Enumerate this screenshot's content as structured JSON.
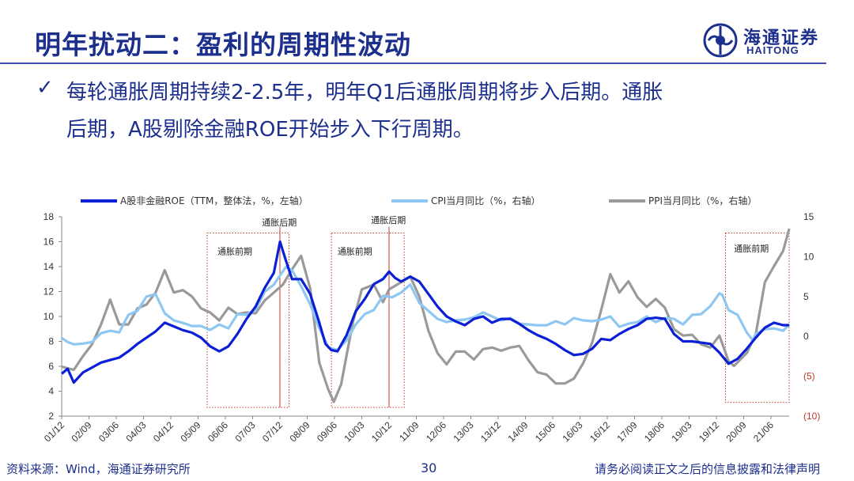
{
  "header": {
    "title": "明年扰动二：盈利的周期性波动",
    "logo_cn": "海通证券",
    "logo_en": "HAITONG"
  },
  "bullet": {
    "line1": "每轮通胀周期持续2-2.5年，明年Q1后通胀周期将步入后期。通胀",
    "line2": "后期，A股剔除金融ROE开始步入下行周期。"
  },
  "footer": {
    "source": "资料来源：Wind，海通证券研究所",
    "page": "30",
    "disclaimer": "请务必阅读正文之后的信息披露和法律声明"
  },
  "colors": {
    "title": "#1d2f8c",
    "roe": "#0b1fd6",
    "cpi": "#8ec7f2",
    "ppi": "#9a9a9a",
    "annotation_box": "#c0392b",
    "negative_tick": "#c0392b"
  },
  "chart_data": {
    "type": "line",
    "legend": [
      "A股非金融ROE（TTM，整体法，%，左轴）",
      "CPI当月同比（%，右轴）",
      "PPI当月同比（%，右轴）"
    ],
    "x_ticks": [
      "01/12",
      "02/09",
      "03/06",
      "04/03",
      "04/12",
      "05/09",
      "06/06",
      "07/03",
      "07/12",
      "08/09",
      "09/06",
      "10/03",
      "10/12",
      "11/09",
      "12/06",
      "13/03",
      "13/12",
      "14/09",
      "15/06",
      "16/03",
      "16/12",
      "17/09",
      "18/06",
      "19/03",
      "19/12",
      "20/09",
      "21/06"
    ],
    "y_left_ticks": [
      "18",
      "16",
      "14",
      "12",
      "10",
      "8",
      "6",
      "4",
      "2"
    ],
    "y_left_lim": [
      2,
      18
    ],
    "y_right_ticks": [
      "15",
      "10",
      "5",
      "0",
      "(5)",
      "(10)"
    ],
    "y_right_lim": [
      -10,
      15
    ],
    "x_range": [
      2001.917,
      2021.917
    ],
    "annotations": [
      {
        "label": "通胀前期",
        "x0": 2005.917,
        "x1": 2008.0
      },
      {
        "label": "通胀后期",
        "x0": 2007.5,
        "x1": 2008.5
      },
      {
        "label": "通胀前期",
        "x0": 2009.333,
        "x1": 2010.333
      },
      {
        "label": "通胀后期",
        "x0": 2010.5,
        "x1": 2011.333
      },
      {
        "label": "通胀前期",
        "x0": 2020.167,
        "x1": 2021.917
      }
    ],
    "annotation_lines": [
      2007.917,
      2010.917
    ],
    "series": [
      {
        "name": "A股非金融ROE（TTM，整体法，%，左轴）",
        "axis": "left",
        "points": [
          [
            2001.92,
            5.4
          ],
          [
            2002.08,
            5.8
          ],
          [
            2002.25,
            4.7
          ],
          [
            2002.5,
            5.5
          ],
          [
            2002.75,
            5.9
          ],
          [
            2003.0,
            6.3
          ],
          [
            2003.25,
            6.5
          ],
          [
            2003.5,
            6.7
          ],
          [
            2003.75,
            7.2
          ],
          [
            2004.0,
            7.8
          ],
          [
            2004.25,
            8.3
          ],
          [
            2004.5,
            8.8
          ],
          [
            2004.75,
            9.5
          ],
          [
            2005.0,
            9.2
          ],
          [
            2005.25,
            8.9
          ],
          [
            2005.5,
            8.7
          ],
          [
            2005.75,
            8.3
          ],
          [
            2006.0,
            7.6
          ],
          [
            2006.25,
            7.2
          ],
          [
            2006.5,
            7.6
          ],
          [
            2006.75,
            8.6
          ],
          [
            2007.0,
            9.8
          ],
          [
            2007.25,
            10.8
          ],
          [
            2007.5,
            12.3
          ],
          [
            2007.75,
            13.5
          ],
          [
            2007.92,
            16.0
          ],
          [
            2008.08,
            14.5
          ],
          [
            2008.25,
            13.0
          ],
          [
            2008.5,
            13.0
          ],
          [
            2008.75,
            11.8
          ],
          [
            2009.0,
            9.5
          ],
          [
            2009.17,
            7.8
          ],
          [
            2009.33,
            7.3
          ],
          [
            2009.5,
            7.2
          ],
          [
            2009.75,
            8.5
          ],
          [
            2010.0,
            10.4
          ],
          [
            2010.25,
            11.4
          ],
          [
            2010.5,
            12.6
          ],
          [
            2010.75,
            13.0
          ],
          [
            2010.92,
            13.6
          ],
          [
            2011.08,
            13.1
          ],
          [
            2011.25,
            12.8
          ],
          [
            2011.5,
            13.2
          ],
          [
            2011.75,
            12.8
          ],
          [
            2012.0,
            11.8
          ],
          [
            2012.25,
            10.8
          ],
          [
            2012.5,
            10.0
          ],
          [
            2012.75,
            9.6
          ],
          [
            2013.0,
            9.3
          ],
          [
            2013.25,
            9.8
          ],
          [
            2013.5,
            10.0
          ],
          [
            2013.75,
            9.5
          ],
          [
            2014.0,
            9.8
          ],
          [
            2014.25,
            9.8
          ],
          [
            2014.5,
            9.4
          ],
          [
            2014.75,
            8.9
          ],
          [
            2015.0,
            8.5
          ],
          [
            2015.25,
            8.2
          ],
          [
            2015.5,
            7.8
          ],
          [
            2015.75,
            7.3
          ],
          [
            2016.0,
            6.9
          ],
          [
            2016.25,
            7.0
          ],
          [
            2016.5,
            7.4
          ],
          [
            2016.75,
            8.2
          ],
          [
            2017.0,
            8.1
          ],
          [
            2017.25,
            8.6
          ],
          [
            2017.5,
            9.0
          ],
          [
            2017.75,
            9.3
          ],
          [
            2018.0,
            9.8
          ],
          [
            2018.25,
            9.9
          ],
          [
            2018.5,
            9.8
          ],
          [
            2018.75,
            8.6
          ],
          [
            2019.0,
            8.0
          ],
          [
            2019.25,
            8.0
          ],
          [
            2019.5,
            7.9
          ],
          [
            2019.75,
            7.8
          ],
          [
            2020.0,
            7.1
          ],
          [
            2020.25,
            6.2
          ],
          [
            2020.5,
            6.6
          ],
          [
            2020.75,
            7.4
          ],
          [
            2021.0,
            8.3
          ],
          [
            2021.25,
            9.1
          ],
          [
            2021.5,
            9.5
          ],
          [
            2021.75,
            9.3
          ],
          [
            2021.92,
            9.3
          ]
        ]
      },
      {
        "name": "CPI当月同比（%，右轴）",
        "axis": "right",
        "points": [
          [
            2001.92,
            -0.2
          ],
          [
            2002.08,
            -0.7
          ],
          [
            2002.25,
            -1.0
          ],
          [
            2002.5,
            -0.9
          ],
          [
            2002.75,
            -0.7
          ],
          [
            2003.0,
            0.4
          ],
          [
            2003.25,
            0.7
          ],
          [
            2003.5,
            0.5
          ],
          [
            2003.75,
            2.7
          ],
          [
            2004.0,
            3.2
          ],
          [
            2004.25,
            5.0
          ],
          [
            2004.5,
            5.3
          ],
          [
            2004.75,
            2.9
          ],
          [
            2005.0,
            2.0
          ],
          [
            2005.25,
            1.7
          ],
          [
            2005.5,
            1.3
          ],
          [
            2005.75,
            1.3
          ],
          [
            2006.0,
            0.8
          ],
          [
            2006.25,
            1.5
          ],
          [
            2006.5,
            1.0
          ],
          [
            2006.75,
            2.8
          ],
          [
            2007.0,
            2.7
          ],
          [
            2007.25,
            3.4
          ],
          [
            2007.5,
            5.6
          ],
          [
            2007.75,
            6.5
          ],
          [
            2008.08,
            8.7
          ],
          [
            2008.25,
            8.3
          ],
          [
            2008.5,
            6.3
          ],
          [
            2008.75,
            4.0
          ],
          [
            2009.0,
            1.0
          ],
          [
            2009.25,
            -1.4
          ],
          [
            2009.5,
            -1.7
          ],
          [
            2009.75,
            -0.5
          ],
          [
            2010.0,
            1.5
          ],
          [
            2010.25,
            2.8
          ],
          [
            2010.5,
            3.3
          ],
          [
            2010.75,
            5.1
          ],
          [
            2011.0,
            4.9
          ],
          [
            2011.25,
            5.5
          ],
          [
            2011.5,
            6.5
          ],
          [
            2011.75,
            4.2
          ],
          [
            2012.0,
            3.2
          ],
          [
            2012.25,
            2.2
          ],
          [
            2012.5,
            1.8
          ],
          [
            2012.75,
            2.0
          ],
          [
            2013.0,
            2.1
          ],
          [
            2013.25,
            2.4
          ],
          [
            2013.5,
            3.0
          ],
          [
            2013.75,
            2.5
          ],
          [
            2014.0,
            2.0
          ],
          [
            2014.25,
            2.3
          ],
          [
            2014.5,
            1.6
          ],
          [
            2014.75,
            1.5
          ],
          [
            2015.0,
            1.4
          ],
          [
            2015.25,
            1.4
          ],
          [
            2015.5,
            1.9
          ],
          [
            2015.75,
            1.5
          ],
          [
            2016.0,
            2.3
          ],
          [
            2016.25,
            2.0
          ],
          [
            2016.5,
            1.9
          ],
          [
            2016.75,
            2.1
          ],
          [
            2017.0,
            2.5
          ],
          [
            2017.25,
            1.2
          ],
          [
            2017.5,
            1.6
          ],
          [
            2017.75,
            1.8
          ],
          [
            2018.0,
            2.5
          ],
          [
            2018.25,
            1.8
          ],
          [
            2018.5,
            2.3
          ],
          [
            2018.75,
            2.2
          ],
          [
            2019.0,
            1.5
          ],
          [
            2019.25,
            2.7
          ],
          [
            2019.5,
            2.8
          ],
          [
            2019.75,
            3.8
          ],
          [
            2020.0,
            5.4
          ],
          [
            2020.08,
            5.2
          ],
          [
            2020.25,
            3.3
          ],
          [
            2020.5,
            2.7
          ],
          [
            2020.75,
            0.5
          ],
          [
            2020.92,
            -0.5
          ],
          [
            2021.0,
            0.3
          ],
          [
            2021.25,
            0.9
          ],
          [
            2021.5,
            1.0
          ],
          [
            2021.75,
            0.7
          ],
          [
            2021.92,
            1.5
          ]
        ]
      },
      {
        "name": "PPI当月同比（%，右轴）",
        "axis": "right",
        "points": [
          [
            2001.92,
            -3.8
          ],
          [
            2002.08,
            -4.0
          ],
          [
            2002.25,
            -4.2
          ],
          [
            2002.5,
            -2.5
          ],
          [
            2002.75,
            -1.0
          ],
          [
            2003.0,
            1.5
          ],
          [
            2003.25,
            4.6
          ],
          [
            2003.5,
            1.5
          ],
          [
            2003.75,
            1.5
          ],
          [
            2004.0,
            3.5
          ],
          [
            2004.25,
            4.0
          ],
          [
            2004.5,
            5.5
          ],
          [
            2004.75,
            8.3
          ],
          [
            2005.0,
            5.5
          ],
          [
            2005.25,
            5.8
          ],
          [
            2005.5,
            5.0
          ],
          [
            2005.75,
            3.5
          ],
          [
            2006.0,
            3.0
          ],
          [
            2006.25,
            2.0
          ],
          [
            2006.5,
            3.6
          ],
          [
            2006.75,
            2.8
          ],
          [
            2007.0,
            3.0
          ],
          [
            2007.25,
            2.9
          ],
          [
            2007.5,
            4.5
          ],
          [
            2007.75,
            5.5
          ],
          [
            2008.0,
            6.5
          ],
          [
            2008.25,
            8.4
          ],
          [
            2008.5,
            10.1
          ],
          [
            2008.75,
            6.0
          ],
          [
            2009.0,
            -3.3
          ],
          [
            2009.25,
            -6.7
          ],
          [
            2009.4,
            -8.2
          ],
          [
            2009.6,
            -6.0
          ],
          [
            2009.92,
            1.7
          ],
          [
            2010.17,
            5.9
          ],
          [
            2010.5,
            6.5
          ],
          [
            2010.75,
            4.3
          ],
          [
            2010.92,
            5.9
          ],
          [
            2011.25,
            6.8
          ],
          [
            2011.5,
            7.5
          ],
          [
            2011.75,
            5.0
          ],
          [
            2012.0,
            0.7
          ],
          [
            2012.25,
            -2.1
          ],
          [
            2012.5,
            -3.5
          ],
          [
            2012.75,
            -1.9
          ],
          [
            2013.0,
            -1.9
          ],
          [
            2013.25,
            -2.9
          ],
          [
            2013.5,
            -1.6
          ],
          [
            2013.75,
            -1.4
          ],
          [
            2014.0,
            -1.8
          ],
          [
            2014.25,
            -1.4
          ],
          [
            2014.5,
            -1.2
          ],
          [
            2014.75,
            -3.0
          ],
          [
            2015.0,
            -4.5
          ],
          [
            2015.25,
            -4.8
          ],
          [
            2015.5,
            -5.9
          ],
          [
            2015.75,
            -5.9
          ],
          [
            2016.0,
            -5.3
          ],
          [
            2016.25,
            -3.4
          ],
          [
            2016.5,
            -0.8
          ],
          [
            2016.75,
            3.3
          ],
          [
            2017.0,
            7.8
          ],
          [
            2017.25,
            5.5
          ],
          [
            2017.5,
            6.9
          ],
          [
            2017.75,
            4.9
          ],
          [
            2018.0,
            3.7
          ],
          [
            2018.25,
            4.7
          ],
          [
            2018.5,
            3.6
          ],
          [
            2018.75,
            0.9
          ],
          [
            2019.0,
            0.1
          ],
          [
            2019.25,
            0.2
          ],
          [
            2019.5,
            -1.0
          ],
          [
            2019.75,
            -1.4
          ],
          [
            2020.0,
            0.1
          ],
          [
            2020.25,
            -3.1
          ],
          [
            2020.4,
            -3.7
          ],
          [
            2020.75,
            -2.1
          ],
          [
            2021.0,
            0.3
          ],
          [
            2021.25,
            6.8
          ],
          [
            2021.5,
            8.8
          ],
          [
            2021.75,
            10.7
          ],
          [
            2021.92,
            13.5
          ]
        ]
      }
    ]
  }
}
